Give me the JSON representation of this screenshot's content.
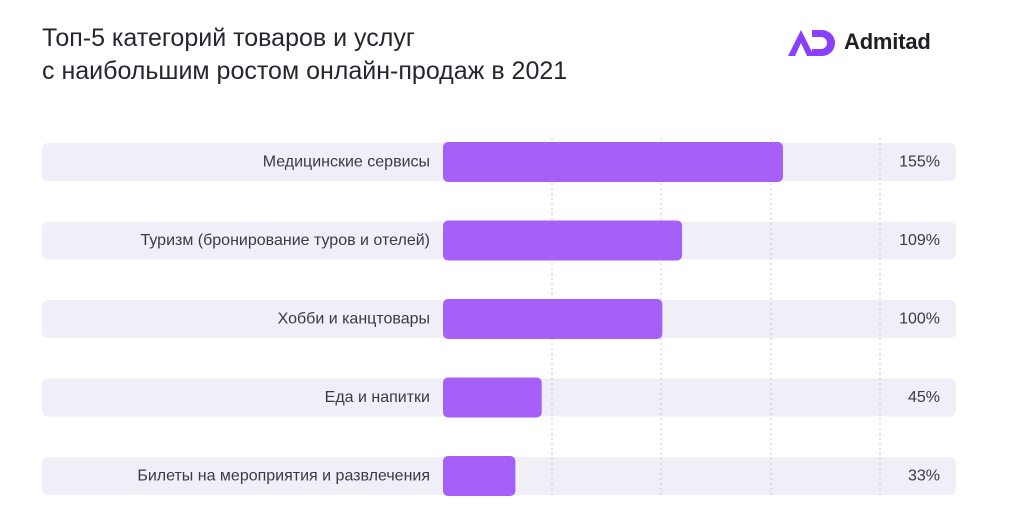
{
  "header": {
    "title_line1": "Топ-5 категорий товаров и услуг",
    "title_line2": "с наибольшим ростом онлайн-продаж в 2021"
  },
  "logo": {
    "text": "Admitad",
    "icon": "admitad-logo-icon",
    "color": "#8a3ffc"
  },
  "colors": {
    "bar": "#a660f7",
    "track": "#f0eff8",
    "grid": "#c9c7d4"
  },
  "chart_data": {
    "type": "bar",
    "orientation": "horizontal",
    "categories": [
      "Медицинские сервисы",
      "Туризм (бронирование туров и отелей)",
      "Хобби и канцтовары",
      "Еда и напитки",
      "Билеты на мероприятия и развлечения"
    ],
    "values": [
      155,
      109,
      100,
      45,
      33
    ],
    "value_labels": [
      "155%",
      "109%",
      "100%",
      "45%",
      "33%"
    ],
    "unit": "%",
    "xlim": [
      0,
      200
    ],
    "grid": true,
    "legend": "none"
  }
}
